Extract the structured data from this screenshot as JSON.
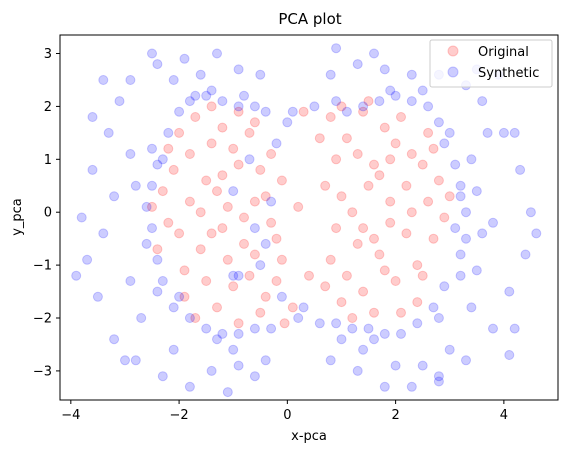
{
  "chart_data": {
    "type": "scatter",
    "title": "PCA plot",
    "xlabel": "x-pca",
    "ylabel": "y_pca",
    "xlim": [
      -4.2,
      5.0
    ],
    "ylim": [
      -3.55,
      3.35
    ],
    "xticks": [
      -4,
      -2,
      0,
      2,
      4
    ],
    "yticks": [
      -3,
      -2,
      -1,
      0,
      1,
      2,
      3
    ],
    "grid": false,
    "legend_position": "top-right",
    "marker_alpha": 0.2,
    "series": [
      {
        "name": "Original",
        "color": "#ff0000",
        "points": [
          [
            -1.8,
            0.2
          ],
          [
            -1.5,
            0.6
          ],
          [
            -1.2,
            -0.3
          ],
          [
            -0.9,
            0.9
          ],
          [
            -0.6,
            -0.8
          ],
          [
            -1.9,
            -1.1
          ],
          [
            -1.4,
            1.3
          ],
          [
            -0.7,
            1.5
          ],
          [
            -2.1,
            0.8
          ],
          [
            -1.0,
            -1.4
          ],
          [
            -0.4,
            0.3
          ],
          [
            -0.2,
            -0.5
          ],
          [
            -1.6,
            -0.7
          ],
          [
            -2.2,
            -0.2
          ],
          [
            -1.1,
            0.1
          ],
          [
            -0.8,
            -0.1
          ],
          [
            -1.3,
            -1.8
          ],
          [
            -0.5,
            -1.9
          ],
          [
            -1.7,
            1.8
          ],
          [
            -0.9,
            1.9
          ],
          [
            -2.0,
            1.5
          ],
          [
            -0.3,
            1.1
          ],
          [
            -0.1,
            0.6
          ],
          [
            -0.6,
            0.2
          ],
          [
            -1.4,
            -0.4
          ],
          [
            -1.9,
            -1.6
          ],
          [
            -2.3,
            0.4
          ],
          [
            -0.7,
            -1.2
          ],
          [
            -1.2,
            0.7
          ],
          [
            -1.5,
            -1.3
          ],
          [
            -0.2,
            -1.3
          ],
          [
            -0.4,
            -1.6
          ],
          [
            -1.0,
            1.2
          ],
          [
            -1.8,
            1.1
          ],
          [
            -2.4,
            -0.7
          ],
          [
            -0.5,
            0.8
          ],
          [
            -1.3,
            0.4
          ],
          [
            -0.8,
            -0.6
          ],
          [
            -1.6,
            0.0
          ],
          [
            -2.0,
            -0.4
          ],
          [
            -1.1,
            -0.9
          ],
          [
            -0.3,
            -0.2
          ],
          [
            -0.6,
            1.7
          ],
          [
            -1.4,
            2.0
          ],
          [
            -2.2,
            1.2
          ],
          [
            -1.7,
            -2.0
          ],
          [
            -0.9,
            -2.1
          ],
          [
            -0.1,
            -0.9
          ],
          [
            -2.5,
            0.1
          ],
          [
            -1.2,
            1.6
          ],
          [
            0.2,
            0.1
          ],
          [
            0.1,
            -1.8
          ],
          [
            0.3,
            1.9
          ],
          [
            -0.05,
            -2.1
          ],
          [
            0.4,
            -1.2
          ],
          [
            1.0,
            0.3
          ],
          [
            1.3,
            -0.6
          ],
          [
            1.6,
            0.9
          ],
          [
            1.9,
            -0.2
          ],
          [
            2.2,
            0.5
          ],
          [
            1.1,
            1.4
          ],
          [
            1.4,
            -1.5
          ],
          [
            1.8,
            1.6
          ],
          [
            2.4,
            -1.0
          ],
          [
            2.6,
            0.2
          ],
          [
            0.8,
            -0.9
          ],
          [
            1.2,
            0.0
          ],
          [
            1.5,
            0.5
          ],
          [
            2.0,
            -1.3
          ],
          [
            2.3,
            1.1
          ],
          [
            0.9,
            1.0
          ],
          [
            1.7,
            -0.8
          ],
          [
            2.1,
            1.8
          ],
          [
            2.7,
            -0.5
          ],
          [
            1.0,
            -1.7
          ],
          [
            1.4,
            1.9
          ],
          [
            1.9,
            0.2
          ],
          [
            2.5,
            0.9
          ],
          [
            0.7,
            0.5
          ],
          [
            1.6,
            -1.9
          ],
          [
            2.2,
            -0.4
          ],
          [
            0.9,
            -0.3
          ],
          [
            1.3,
            1.1
          ],
          [
            2.8,
            0.6
          ],
          [
            1.8,
            -1.1
          ],
          [
            2.0,
            1.3
          ],
          [
            1.1,
            -1.2
          ],
          [
            2.4,
            -1.7
          ],
          [
            0.6,
            1.4
          ],
          [
            1.5,
            2.1
          ],
          [
            2.6,
            1.5
          ],
          [
            1.2,
            -2.0
          ],
          [
            2.9,
            -0.1
          ],
          [
            1.7,
            0.7
          ],
          [
            0.8,
            1.8
          ],
          [
            2.3,
            0.0
          ],
          [
            1.4,
            -0.3
          ],
          [
            2.1,
            -1.9
          ],
          [
            0.7,
            -1.4
          ],
          [
            1.9,
            1.0
          ],
          [
            2.5,
            -1.2
          ],
          [
            1.0,
            2.0
          ],
          [
            1.6,
            -0.5
          ],
          [
            2.7,
            1.2
          ],
          [
            3.0,
            0.3
          ]
        ]
      },
      {
        "name": "Synthetic",
        "color": "#0000ff",
        "points": [
          [
            -2.5,
            0.5
          ],
          [
            -2.5,
            -0.3
          ],
          [
            -2.6,
            0.1
          ],
          [
            -2.4,
            -0.9
          ],
          [
            -2.3,
            1.0
          ],
          [
            -2.2,
            1.5
          ],
          [
            -2.0,
            1.9
          ],
          [
            -1.8,
            2.1
          ],
          [
            -1.5,
            2.2
          ],
          [
            -1.2,
            2.1
          ],
          [
            -0.9,
            2.0
          ],
          [
            -0.6,
            2.0
          ],
          [
            -0.4,
            1.9
          ],
          [
            -2.0,
            -1.6
          ],
          [
            -1.8,
            -2.0
          ],
          [
            -1.5,
            -2.2
          ],
          [
            -1.2,
            -2.3
          ],
          [
            -0.9,
            -2.3
          ],
          [
            -0.6,
            -2.2
          ],
          [
            -0.3,
            -2.2
          ],
          [
            -2.3,
            -1.3
          ],
          [
            -2.4,
            0.9
          ],
          [
            -1.0,
            0.4
          ],
          [
            -0.6,
            -0.3
          ],
          [
            -0.7,
            1.0
          ],
          [
            -0.5,
            -1.0
          ],
          [
            -0.9,
            -1.2
          ],
          [
            -1.0,
            -1.2
          ],
          [
            -0.4,
            -0.6
          ],
          [
            -0.3,
            0.2
          ],
          [
            -2.6,
            -0.6
          ],
          [
            -2.1,
            -1.8
          ],
          [
            -1.7,
            2.2
          ],
          [
            -0.2,
            1.3
          ],
          [
            -0.1,
            -1.6
          ],
          [
            -2.5,
            1.2
          ],
          [
            -1.3,
            -2.4
          ],
          [
            -0.8,
            2.2
          ],
          [
            -1.4,
            2.3
          ],
          [
            -2.4,
            -1.5
          ],
          [
            0.1,
            1.9
          ],
          [
            0.5,
            2.0
          ],
          [
            0.2,
            -2.0
          ],
          [
            0.6,
            -2.1
          ],
          [
            0.0,
            1.7
          ],
          [
            0.3,
            -1.8
          ],
          [
            3.2,
            0.5
          ],
          [
            3.1,
            -0.3
          ],
          [
            3.3,
            0.0
          ],
          [
            3.2,
            -0.8
          ],
          [
            3.1,
            0.9
          ],
          [
            2.9,
            1.3
          ],
          [
            2.8,
            1.7
          ],
          [
            2.6,
            2.0
          ],
          [
            2.3,
            2.1
          ],
          [
            2.0,
            2.2
          ],
          [
            1.7,
            2.1
          ],
          [
            1.4,
            2.0
          ],
          [
            1.1,
            1.9
          ],
          [
            2.9,
            -1.4
          ],
          [
            2.7,
            -1.8
          ],
          [
            2.4,
            -2.1
          ],
          [
            2.1,
            -2.3
          ],
          [
            1.8,
            -2.3
          ],
          [
            1.5,
            -2.2
          ],
          [
            1.2,
            -2.2
          ],
          [
            0.9,
            -2.1
          ],
          [
            3.2,
            -1.2
          ],
          [
            3.0,
            1.5
          ],
          [
            2.8,
            -2.0
          ],
          [
            1.6,
            -2.4
          ],
          [
            2.5,
            2.3
          ],
          [
            1.9,
            2.3
          ],
          [
            3.3,
            -0.5
          ],
          [
            3.2,
            0.3
          ],
          [
            0.9,
            2.1
          ],
          [
            -3.1,
            2.1
          ],
          [
            -3.3,
            1.5
          ],
          [
            -3.6,
            0.8
          ],
          [
            -3.8,
            -0.1
          ],
          [
            -3.7,
            -0.9
          ],
          [
            -3.5,
            -1.6
          ],
          [
            -3.2,
            -2.4
          ],
          [
            -2.8,
            -2.8
          ],
          [
            -2.3,
            -3.1
          ],
          [
            -1.8,
            -3.3
          ],
          [
            -1.4,
            -3.0
          ],
          [
            -0.9,
            -2.9
          ],
          [
            -0.4,
            -2.8
          ],
          [
            -2.9,
            2.5
          ],
          [
            -2.4,
            2.8
          ],
          [
            -1.9,
            2.9
          ],
          [
            -1.3,
            3.0
          ],
          [
            -0.9,
            2.7
          ],
          [
            -0.5,
            2.6
          ],
          [
            -3.9,
            -1.2
          ],
          [
            -3.4,
            -0.4
          ],
          [
            -3.2,
            0.3
          ],
          [
            -2.9,
            -1.3
          ],
          [
            -2.9,
            1.1
          ],
          [
            -2.7,
            -2.0
          ],
          [
            -2.8,
            0.5
          ],
          [
            -2.1,
            -2.6
          ],
          [
            -2.1,
            2.5
          ],
          [
            -1.0,
            -2.6
          ],
          [
            -3.6,
            1.8
          ],
          [
            -3.0,
            -2.8
          ],
          [
            -2.5,
            3.0
          ],
          [
            -1.6,
            2.6
          ],
          [
            -0.6,
            -3.1
          ],
          [
            -3.4,
            2.5
          ],
          [
            -1.1,
            -3.4
          ],
          [
            0.8,
            2.6
          ],
          [
            1.3,
            2.8
          ],
          [
            1.8,
            2.7
          ],
          [
            2.3,
            2.6
          ],
          [
            2.8,
            2.6
          ],
          [
            3.3,
            2.4
          ],
          [
            3.6,
            2.1
          ],
          [
            4.0,
            1.5
          ],
          [
            4.3,
            0.8
          ],
          [
            4.5,
            0.0
          ],
          [
            4.4,
            -0.8
          ],
          [
            4.1,
            -1.5
          ],
          [
            3.8,
            -2.2
          ],
          [
            3.3,
            -2.8
          ],
          [
            2.8,
            -3.1
          ],
          [
            2.3,
            -3.3
          ],
          [
            1.8,
            -3.3
          ],
          [
            1.3,
            -3.0
          ],
          [
            0.8,
            -2.8
          ],
          [
            3.7,
            1.5
          ],
          [
            3.4,
            1.0
          ],
          [
            3.5,
            0.4
          ],
          [
            3.6,
            -0.4
          ],
          [
            3.5,
            -1.1
          ],
          [
            3.4,
            -1.8
          ],
          [
            3.0,
            -2.6
          ],
          [
            2.5,
            -2.9
          ],
          [
            2.0,
            -2.9
          ],
          [
            1.4,
            -2.6
          ],
          [
            1.0,
            -2.4
          ],
          [
            4.2,
            -2.2
          ],
          [
            4.6,
            -0.4
          ],
          [
            4.2,
            1.5
          ],
          [
            3.9,
            2.6
          ],
          [
            3.5,
            2.7
          ],
          [
            2.8,
            -3.2
          ],
          [
            1.6,
            3.0
          ],
          [
            0.9,
            3.1
          ],
          [
            4.1,
            -2.7
          ],
          [
            3.8,
            -0.2
          ]
        ]
      }
    ]
  }
}
